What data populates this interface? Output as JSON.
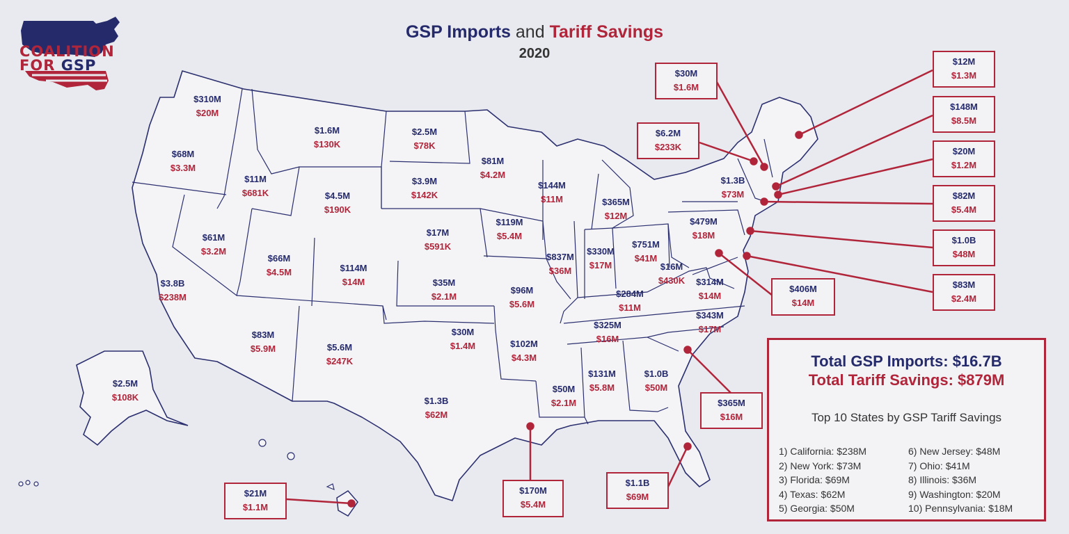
{
  "title": {
    "part1": "GSP Imports",
    "part2": "and",
    "part3": "Tariff Savings",
    "year": "2020"
  },
  "logo": {
    "line1": "COALITION",
    "line2a": "FOR",
    "line2b": "GSP"
  },
  "colors": {
    "navy": "#252a6b",
    "red": "#b0253a",
    "map_fill": "#f4f4f7",
    "background": "#e9eaef"
  },
  "states": [
    {
      "state": "WA",
      "imports": "$310M",
      "savings": "$20M"
    },
    {
      "state": "OR",
      "imports": "$68M",
      "savings": "$3.3M"
    },
    {
      "state": "CA",
      "imports": "$3.8B",
      "savings": "$238M"
    },
    {
      "state": "ID",
      "imports": "$11M",
      "savings": "$681K"
    },
    {
      "state": "NV",
      "imports": "$61M",
      "savings": "$3.2M"
    },
    {
      "state": "MT",
      "imports": "$1.6M",
      "savings": "$130K"
    },
    {
      "state": "WY",
      "imports": "$4.5M",
      "savings": "$190K"
    },
    {
      "state": "UT",
      "imports": "$66M",
      "savings": "$4.5M"
    },
    {
      "state": "AZ",
      "imports": "$83M",
      "savings": "$5.9M"
    },
    {
      "state": "CO",
      "imports": "$114M",
      "savings": "$14M"
    },
    {
      "state": "NM",
      "imports": "$5.6M",
      "savings": "$247K"
    },
    {
      "state": "ND",
      "imports": "$2.5M",
      "savings": "$78K"
    },
    {
      "state": "SD",
      "imports": "$3.9M",
      "savings": "$142K"
    },
    {
      "state": "NE",
      "imports": "$17M",
      "savings": "$591K"
    },
    {
      "state": "KS",
      "imports": "$35M",
      "savings": "$2.1M"
    },
    {
      "state": "OK",
      "imports": "$30M",
      "savings": "$1.4M"
    },
    {
      "state": "TX",
      "imports": "$1.3B",
      "savings": "$62M"
    },
    {
      "state": "MN",
      "imports": "$81M",
      "savings": "$4.2M"
    },
    {
      "state": "IA",
      "imports": "$119M",
      "savings": "$5.4M"
    },
    {
      "state": "MO",
      "imports": "$96M",
      "savings": "$5.6M"
    },
    {
      "state": "AR",
      "imports": "$102M",
      "savings": "$4.3M"
    },
    {
      "state": "WI",
      "imports": "$144M",
      "savings": "$11M"
    },
    {
      "state": "IL",
      "imports": "$837M",
      "savings": "$36M"
    },
    {
      "state": "MI",
      "imports": "$365M",
      "savings": "$12M"
    },
    {
      "state": "IN",
      "imports": "$330M",
      "savings": "$17M"
    },
    {
      "state": "OH",
      "imports": "$751M",
      "savings": "$41M"
    },
    {
      "state": "KY",
      "imports": "$284M",
      "savings": "$11M"
    },
    {
      "state": "TN",
      "imports": "$325M",
      "savings": "$16M"
    },
    {
      "state": "MS",
      "imports": "$50M",
      "savings": "$2.1M"
    },
    {
      "state": "AL",
      "imports": "$131M",
      "savings": "$5.8M"
    },
    {
      "state": "GA",
      "imports": "$1.0B",
      "savings": "$50M"
    },
    {
      "state": "WV",
      "imports": "$16M",
      "savings": "$430K"
    },
    {
      "state": "VA",
      "imports": "$314M",
      "savings": "$14M"
    },
    {
      "state": "NC",
      "imports": "$343M",
      "savings": "$17M"
    },
    {
      "state": "PA",
      "imports": "$479M",
      "savings": "$18M"
    },
    {
      "state": "NY",
      "imports": "$1.3B",
      "savings": "$73M"
    },
    {
      "state": "AK",
      "imports": "$2.5M",
      "savings": "$108K"
    }
  ],
  "callouts": [
    {
      "state": "VT",
      "imports": "$30M",
      "savings": "$1.6M"
    },
    {
      "state": "NH",
      "imports": "$6.2M",
      "savings": "$233K"
    },
    {
      "state": "ME",
      "imports": "$12M",
      "savings": "$1.3M"
    },
    {
      "state": "MA",
      "imports": "$148M",
      "savings": "$8.5M"
    },
    {
      "state": "RI",
      "imports": "$20M",
      "savings": "$1.2M"
    },
    {
      "state": "CT",
      "imports": "$82M",
      "savings": "$5.4M"
    },
    {
      "state": "NJ",
      "imports": "$1.0B",
      "savings": "$48M"
    },
    {
      "state": "DE",
      "imports": "$83M",
      "savings": "$2.4M"
    },
    {
      "state": "MD",
      "imports": "$406M",
      "savings": "$14M"
    },
    {
      "state": "SC",
      "imports": "$365M",
      "savings": "$16M"
    },
    {
      "state": "FL",
      "imports": "$1.1B",
      "savings": "$69M"
    },
    {
      "state": "LA",
      "imports": "$170M",
      "savings": "$5.4M"
    },
    {
      "state": "HI",
      "imports": "$21M",
      "savings": "$1.1M"
    }
  ],
  "totals": {
    "imports": "Total GSP Imports: $16.7B",
    "savings": "Total Tariff Savings: $879M",
    "top10_title": "Top 10 States by GSP Tariff Savings",
    "top10": [
      "1)  California: $238M",
      "2)  New York: $73M",
      "3)  Florida: $69M",
      "4)   Texas: $62M",
      "5)   Georgia: $50M",
      "6)  New Jersey: $48M",
      "7)  Ohio: $41M",
      "8)  Illinois: $36M",
      "9)  Washington: $20M",
      "10) Pennsylvania: $18M"
    ]
  }
}
